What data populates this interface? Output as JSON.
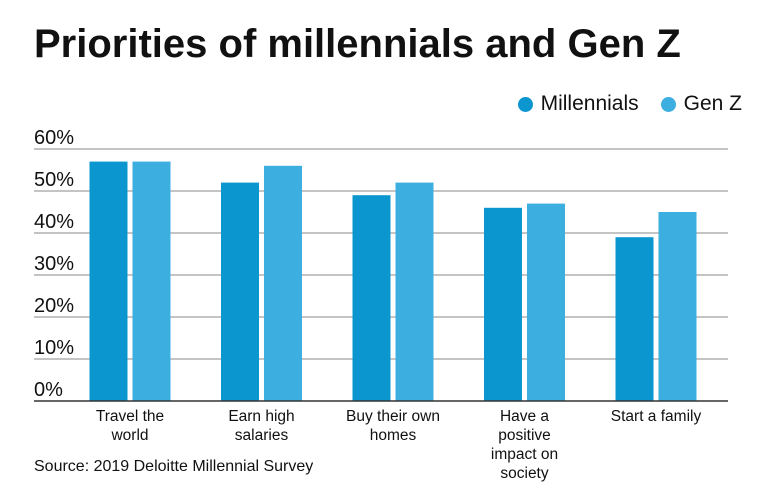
{
  "title": "Priorities of millennials and Gen Z",
  "source": "Source: 2019 Deloitte Millennial Survey",
  "colors": {
    "millennials": "#0b96cf",
    "genz": "#3daee0",
    "grid": "#8a8a8a",
    "axis": "#333333"
  },
  "chart_data": {
    "type": "bar",
    "title": "Priorities of millennials and Gen Z",
    "xlabel": "",
    "ylabel": "",
    "ylim": [
      0,
      60
    ],
    "y_ticks": [
      "0%",
      "10%",
      "20%",
      "30%",
      "40%",
      "50%",
      "60%"
    ],
    "grid": true,
    "legend_position": "top-right",
    "categories": [
      [
        "Travel the",
        "world"
      ],
      [
        "Earn high",
        "salaries"
      ],
      [
        "Buy their own",
        "homes"
      ],
      [
        "Have a",
        "positive",
        "impact on",
        "society"
      ],
      [
        "Start a family"
      ]
    ],
    "series": [
      {
        "name": "Millennials",
        "values": [
          57,
          52,
          49,
          46,
          39
        ]
      },
      {
        "name": "Gen Z",
        "values": [
          57,
          56,
          52,
          47,
          45
        ]
      }
    ]
  }
}
